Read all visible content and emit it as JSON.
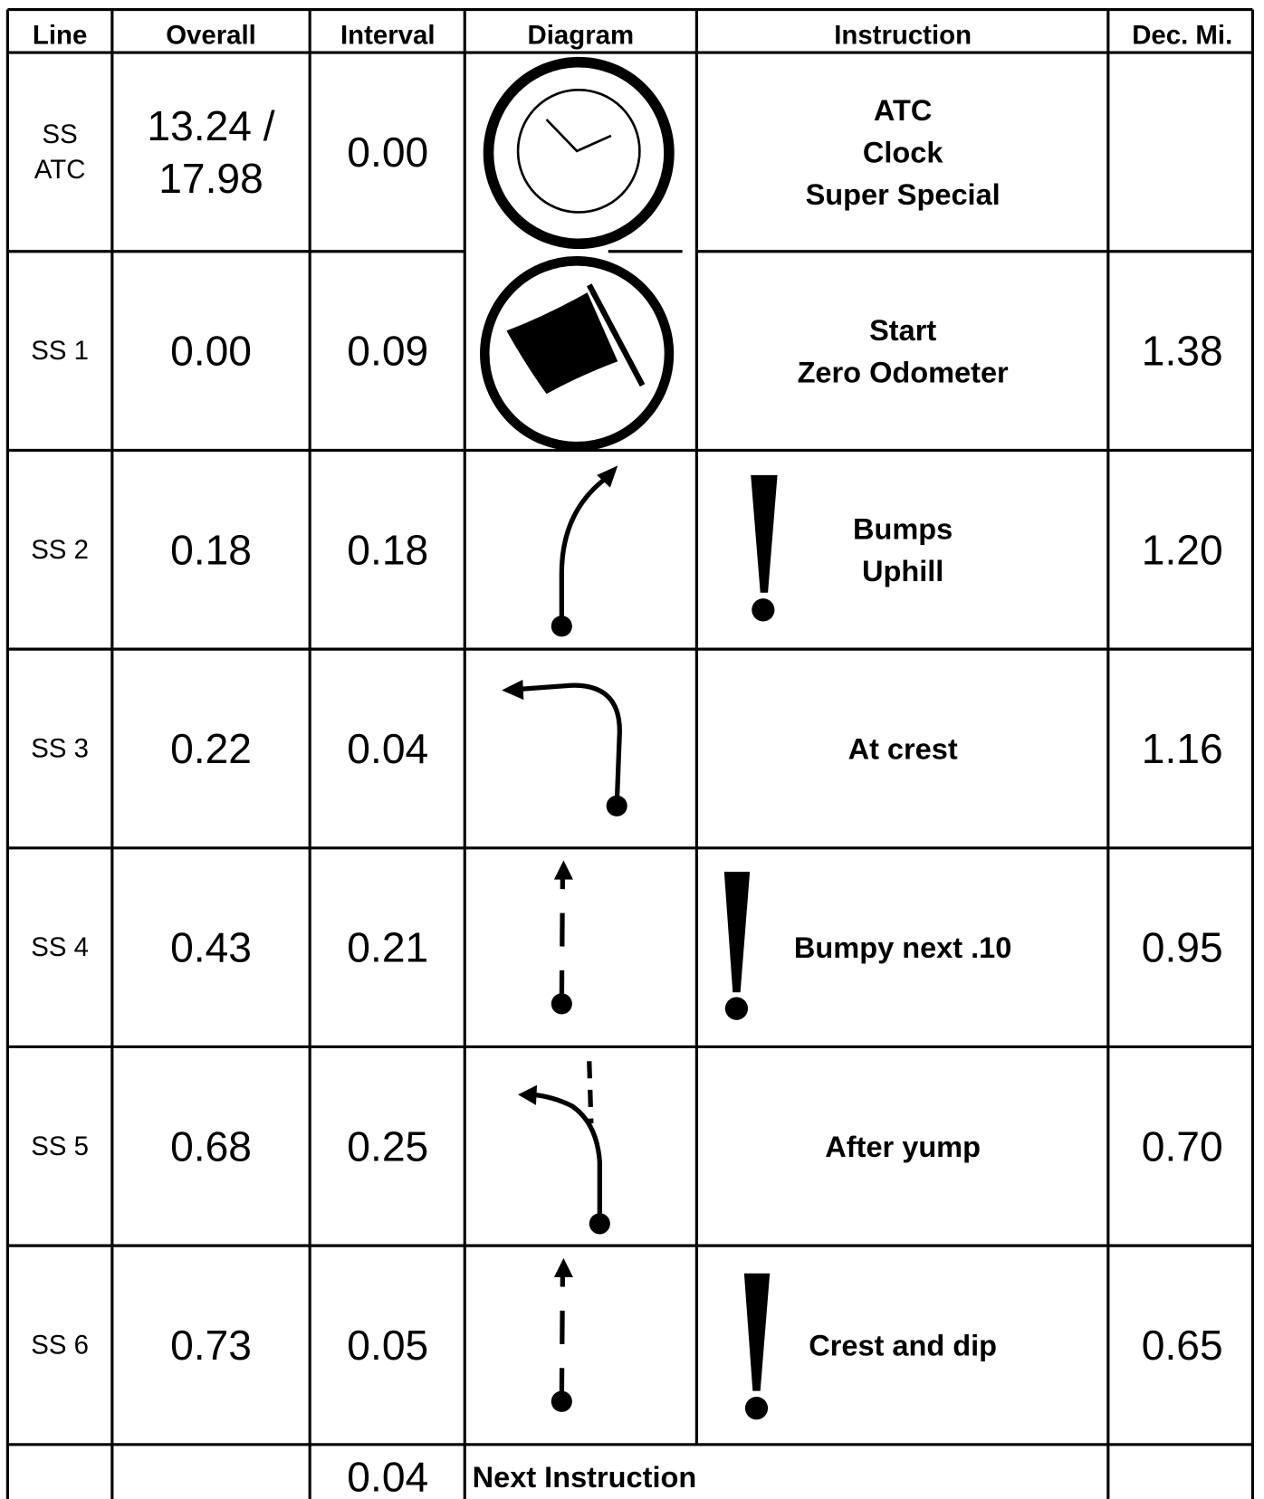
{
  "table": {
    "columns": [
      "Line",
      "Overall",
      "Interval",
      "Diagram",
      "Instruction",
      "Dec. Mi."
    ],
    "rows": [
      {
        "line": [
          "SS",
          "ATC"
        ],
        "overall": [
          "13.24 /",
          "17.98"
        ],
        "interval": "0.00",
        "instruction": [
          "ATC",
          "Clock",
          "Super Special"
        ]
      },
      {
        "line": "SS 1",
        "overall": "0.00",
        "interval": "0.09",
        "instruction": [
          "Start",
          "Zero Odometer"
        ],
        "dec_mi": "1.38"
      },
      {
        "line": "SS 2",
        "overall": "0.18",
        "interval": "0.18",
        "instruction": [
          "Bumps",
          "Uphill"
        ],
        "dec_mi": "1.20"
      },
      {
        "line": "SS 3",
        "overall": "0.22",
        "interval": "0.04",
        "instruction": [
          "At crest"
        ],
        "dec_mi": "1.16"
      },
      {
        "line": "SS 4",
        "overall": "0.43",
        "interval": "0.21",
        "instruction": [
          "Bumpy next .10"
        ],
        "dec_mi": "0.95"
      },
      {
        "line": "SS 5",
        "overall": "0.68",
        "interval": "0.25",
        "instruction": [
          "After yump"
        ],
        "dec_mi": "0.70"
      },
      {
        "line": "SS 6",
        "overall": "0.73",
        "interval": "0.05",
        "instruction": [
          "Crest and dip"
        ],
        "dec_mi": "0.65"
      }
    ],
    "footer": {
      "interval": "0.04",
      "instruction": "Next Instruction"
    }
  }
}
